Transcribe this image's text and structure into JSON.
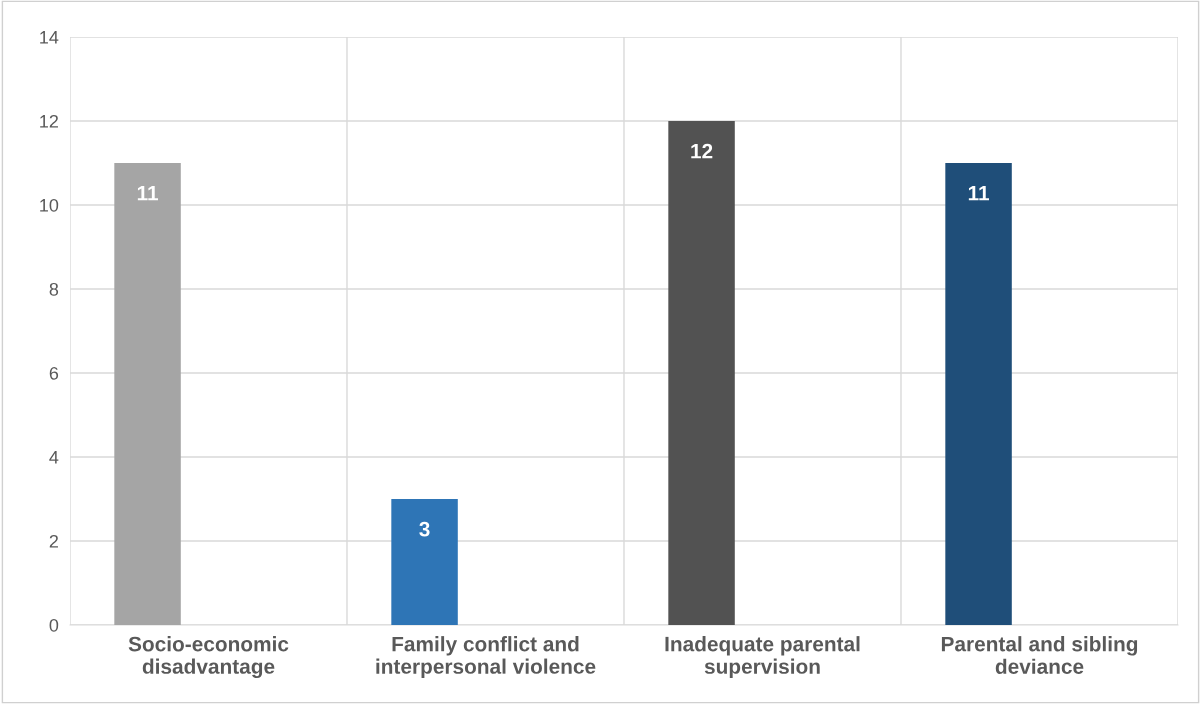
{
  "chart_data": {
    "type": "bar",
    "categories": [
      "Socio-economic\ndisadvantage",
      "Family conflict and\ninterpersonal violence",
      "Inadequate parental\nsupervision",
      "Parental and sibling\ndeviance"
    ],
    "values": [
      11,
      3,
      12,
      11
    ],
    "colors": [
      "#a5a5a5",
      "#2e75b6",
      "#525252",
      "#1f4e79"
    ],
    "ylim": [
      0,
      14
    ],
    "yticks": [
      0,
      2,
      4,
      6,
      8,
      10,
      12,
      14
    ],
    "grid": true,
    "data_labels": true
  }
}
